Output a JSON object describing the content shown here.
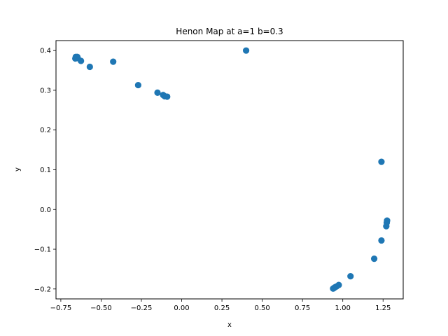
{
  "chart_data": {
    "type": "scatter",
    "title": "Henon Map at a=1 b=0.3",
    "xlabel": "x",
    "ylabel": "y",
    "xlim": [
      -0.78,
      1.375
    ],
    "ylim": [
      -0.225,
      0.425
    ],
    "xticks": [
      -0.75,
      -0.5,
      -0.25,
      0.0,
      0.25,
      0.5,
      0.75,
      1.0,
      1.25
    ],
    "xtick_labels": [
      "−0.75",
      "−0.50",
      "−0.25",
      "0.00",
      "0.25",
      "0.50",
      "0.75",
      "1.00",
      "1.25"
    ],
    "yticks": [
      -0.2,
      -0.1,
      0.0,
      0.1,
      0.2,
      0.3,
      0.4
    ],
    "ytick_labels": [
      "−0.2",
      "−0.1",
      "0.0",
      "0.1",
      "0.2",
      "0.3",
      "0.4"
    ],
    "grid": false,
    "legend": "none",
    "color": "#1f77b4",
    "points": [
      {
        "x": 0.4,
        "y": 0.4
      },
      {
        "x": 1.24,
        "y": 0.12
      },
      {
        "x": -0.657,
        "y": 0.384
      },
      {
        "x": -0.648,
        "y": 0.384
      },
      {
        "x": -0.66,
        "y": 0.38
      },
      {
        "x": -0.645,
        "y": 0.381
      },
      {
        "x": -0.625,
        "y": 0.374
      },
      {
        "x": -0.57,
        "y": 0.359
      },
      {
        "x": -0.425,
        "y": 0.372
      },
      {
        "x": -0.27,
        "y": 0.313
      },
      {
        "x": -0.15,
        "y": 0.294
      },
      {
        "x": -0.115,
        "y": 0.288
      },
      {
        "x": -0.105,
        "y": 0.285
      },
      {
        "x": -0.09,
        "y": 0.284
      },
      {
        "x": 1.275,
        "y": -0.028
      },
      {
        "x": 1.273,
        "y": -0.033
      },
      {
        "x": 1.27,
        "y": -0.042
      },
      {
        "x": 1.24,
        "y": -0.078
      },
      {
        "x": 1.195,
        "y": -0.124
      },
      {
        "x": 1.048,
        "y": -0.168
      },
      {
        "x": 0.975,
        "y": -0.19
      },
      {
        "x": 0.96,
        "y": -0.194
      },
      {
        "x": 0.95,
        "y": -0.196
      },
      {
        "x": 0.945,
        "y": -0.198
      },
      {
        "x": 0.94,
        "y": -0.199
      }
    ]
  }
}
